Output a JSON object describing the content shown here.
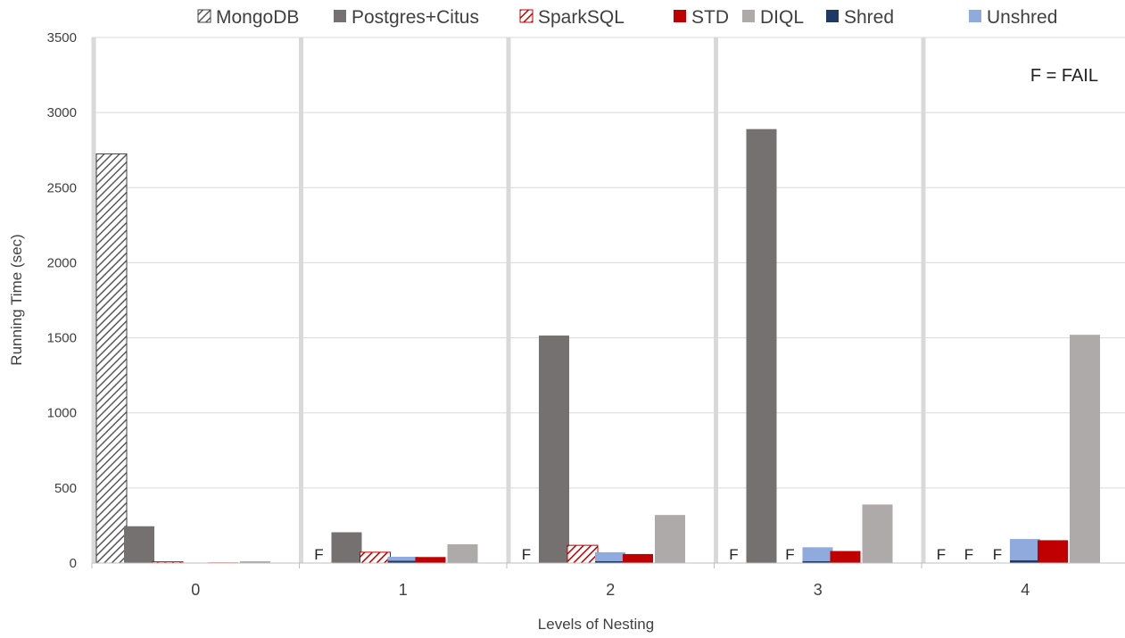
{
  "chart_data": {
    "type": "bar",
    "xlabel": "Levels of Nesting",
    "ylabel": "Running Time (sec)",
    "ylim": [
      0,
      3500
    ],
    "yticks": [
      0,
      500,
      1000,
      1500,
      2000,
      2500,
      3000,
      3500
    ],
    "categories": [
      "0",
      "1",
      "2",
      "3",
      "4"
    ],
    "grid": true,
    "legend_position": "top",
    "annotation": "F = FAIL",
    "fail_label": "F",
    "series": [
      {
        "name": "MongoDB",
        "color": "#7f7f7f",
        "pattern": "diagonal-hatch",
        "values": [
          2725,
          null,
          null,
          null,
          null
        ]
      },
      {
        "name": "Postgres+Citus",
        "color": "#767171",
        "values": [
          245,
          205,
          1515,
          2890,
          null
        ]
      },
      {
        "name": "SparkSQL",
        "color": "#c00000",
        "pattern": "diagonal-hatch",
        "values": [
          8,
          72,
          118,
          null,
          null
        ]
      },
      {
        "name": "Shred",
        "color": "#1f3864",
        "values": [
          3,
          15,
          12,
          12,
          18
        ]
      },
      {
        "name": "Unshred",
        "color": "#8faadc",
        "values": [
          3,
          42,
          72,
          105,
          160
        ]
      },
      {
        "name": "STD",
        "color": "#c00000",
        "values": [
          4,
          40,
          60,
          80,
          152
        ]
      },
      {
        "name": "DIQL",
        "color": "#aeaaaa",
        "values": [
          12,
          125,
          320,
          390,
          1520
        ]
      }
    ],
    "legend_order": [
      "MongoDB",
      "Postgres+Citus",
      "SparkSQL",
      "STD",
      "DIQL",
      "Shred",
      "Unshred"
    ]
  }
}
